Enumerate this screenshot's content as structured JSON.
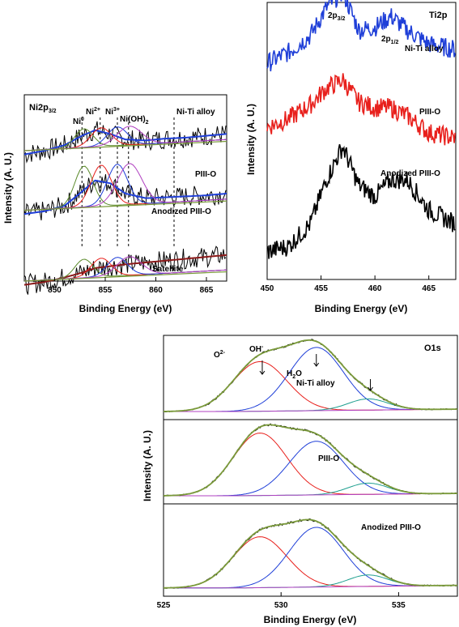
{
  "colors": {
    "black": "#000000",
    "blue": "#1f3fd8",
    "red": "#e8201c",
    "green": "#5a8a2a",
    "olive": "#7a9a3a",
    "teal": "#20a090",
    "magenta": "#b040c0",
    "darkred": "#8b1a1a",
    "brown": "#8b5a2b"
  },
  "chart_data": [
    {
      "type": "line",
      "title": "Ni2p3/2",
      "title_main": "Ni2p",
      "title_sub": "3/2",
      "xlabel": "Binding Energy (eV)",
      "ylabel": "Intensity (A. U.)",
      "xlim": [
        847,
        867
      ],
      "x_ticks": [
        "850",
        "855",
        "860",
        "865"
      ],
      "peak_markers": [
        {
          "label": "Ni",
          "sup": "0",
          "x": 852.7
        },
        {
          "label": "Ni",
          "sup": "2+",
          "x": 854.5
        },
        {
          "label": "Ni",
          "sup": "3+",
          "x": 856.2
        },
        {
          "label": "Ni(OH)",
          "sub": "2",
          "x": 857.3
        },
        {
          "label": "",
          "x": 861.8
        }
      ],
      "series_labels": [
        "Ni-Ti alloy",
        "PIII-O",
        "Anodized PIII-O",
        "Satellite"
      ],
      "series": [
        {
          "name": "Ni-Ti alloy",
          "raw": "black",
          "fit": "blue",
          "baseline": 0.88,
          "x": [
            847,
            849,
            851,
            852.7,
            854,
            855.5,
            857,
            859,
            861,
            863,
            865,
            867
          ],
          "values": [
            0.0,
            0.04,
            0.1,
            0.2,
            0.26,
            0.22,
            0.16,
            0.15,
            0.17,
            0.18,
            0.2,
            0.22
          ]
        },
        {
          "name": "PIII-O",
          "raw": "black",
          "fit": "blue",
          "baseline": 0.56,
          "x": [
            847,
            849,
            851,
            852.7,
            854,
            855.5,
            857,
            859,
            861,
            863,
            865,
            867
          ],
          "values": [
            0.0,
            0.03,
            0.09,
            0.24,
            0.36,
            0.33,
            0.22,
            0.17,
            0.18,
            0.19,
            0.2,
            0.22
          ]
        },
        {
          "name": "Anodized PIII-O",
          "raw": "black",
          "fit": "darkred",
          "baseline": 0.18,
          "x": [
            847,
            849,
            851,
            852.7,
            854,
            855.5,
            857,
            859,
            861,
            863,
            865,
            867
          ],
          "values": [
            0.0,
            0.03,
            0.08,
            0.13,
            0.18,
            0.2,
            0.22,
            0.24,
            0.26,
            0.28,
            0.3,
            0.32
          ]
        }
      ]
    },
    {
      "type": "line",
      "title": "Ti2p",
      "xlabel": "Binding Energy (eV)",
      "ylabel": "Intensity (A. U.)",
      "xlim": [
        450,
        467.5
      ],
      "x_ticks": [
        "450",
        "455",
        "460",
        "465"
      ],
      "annotations": [
        {
          "label": "2p",
          "sub": "3/2"
        },
        {
          "label": "2p",
          "sub": "1/2"
        }
      ],
      "series": [
        {
          "name": "Ni-Ti alloy",
          "color": "blue",
          "offset": 0.78,
          "x": [
            450,
            452,
            454,
            455.5,
            457,
            458.5,
            460,
            461.5,
            463,
            465,
            467.5
          ],
          "values": [
            0.0,
            0.04,
            0.1,
            0.2,
            0.26,
            0.12,
            0.13,
            0.17,
            0.12,
            0.07,
            0.05
          ]
        },
        {
          "name": "PIII-O",
          "color": "red",
          "offset": 0.55,
          "x": [
            450,
            452,
            454,
            455.5,
            457,
            458.5,
            460,
            461.5,
            463,
            465,
            467.5
          ],
          "values": [
            0.0,
            0.03,
            0.08,
            0.14,
            0.17,
            0.09,
            0.07,
            0.07,
            0.04,
            -0.02,
            -0.04
          ]
        },
        {
          "name": "Anodized PIII-O",
          "color": "black",
          "offset": 0.1,
          "x": [
            450,
            452,
            454,
            455.5,
            457,
            458.5,
            460,
            461.5,
            463,
            465,
            467.5
          ],
          "values": [
            0.0,
            0.02,
            0.1,
            0.26,
            0.38,
            0.24,
            0.2,
            0.26,
            0.26,
            0.15,
            0.1
          ]
        }
      ]
    },
    {
      "type": "line",
      "title": "O1s",
      "xlabel": "Binding Energy (eV)",
      "ylabel": "Intensity (A. U.)",
      "xlim": [
        525,
        537.5
      ],
      "x_ticks": [
        "525",
        "530",
        "535"
      ],
      "annotations": [
        {
          "label": "O",
          "sup": "2-",
          "x": 529.2
        },
        {
          "label": "OH",
          "sup": "-",
          "x": 531.5
        },
        {
          "label": "H",
          "sub": "2",
          "tail": "O",
          "x": 533.8
        }
      ],
      "series_labels": [
        "Ni-Ti alloy",
        "PIII-O",
        "Anodized PIII-O"
      ],
      "components": {
        "O2-": {
          "center": 529.1,
          "width": 1.15
        },
        "OH-": {
          "center": 531.5,
          "width": 1.15
        },
        "H2O": {
          "center": 533.7,
          "width": 0.85
        }
      },
      "series": [
        {
          "name": "Ni-Ti alloy",
          "amp_o2": 0.62,
          "amp_oh": 0.79,
          "amp_h2o": 0.14
        },
        {
          "name": "PIII-O",
          "amp_o2": 0.78,
          "amp_oh": 0.67,
          "amp_h2o": 0.14
        },
        {
          "name": "Anodized PIII-O",
          "amp_o2": 0.58,
          "amp_oh": 0.68,
          "amp_h2o": 0.13
        }
      ]
    }
  ]
}
